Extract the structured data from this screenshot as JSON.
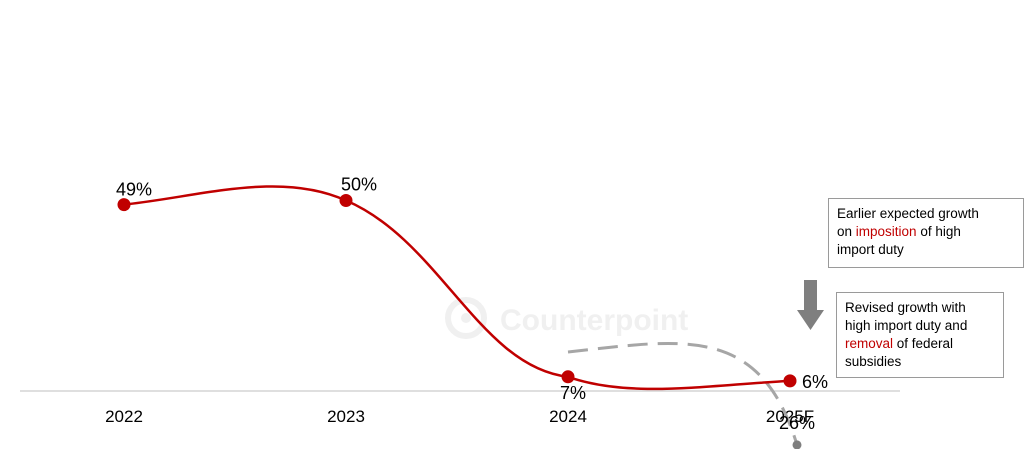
{
  "chart_data": {
    "type": "line",
    "categories": [
      "2022",
      "2023",
      "2024",
      "2025F"
    ],
    "series": [
      {
        "values": [
          49,
          50,
          7,
          6
        ],
        "labels": [
          "49%",
          "50%",
          "7%",
          "6%"
        ],
        "color": "#c00000",
        "style": "solid"
      },
      {
        "values": [
          null,
          null,
          7,
          26
        ],
        "labels": [
          null,
          null,
          null,
          "26%"
        ],
        "color": "#a6a6a6",
        "style": "dashed"
      }
    ],
    "title": "",
    "xlabel": "",
    "ylabel": "",
    "grid": false,
    "annotations": {
      "earlier": {
        "line1": "Earlier expected growth",
        "line2_pre": "on ",
        "line2_red": "imposition",
        "line2_post": " of high",
        "line3": "import duty"
      },
      "revised": {
        "line1": "Revised growth with",
        "line2": "high import duty and",
        "line3_red": "removal",
        "line3_post": " of federal",
        "line4": "subsidies"
      },
      "highlight_color": "#c00000",
      "arrow_color": "#7f7f7f"
    }
  },
  "watermark": {
    "text": "Counterpoint"
  }
}
